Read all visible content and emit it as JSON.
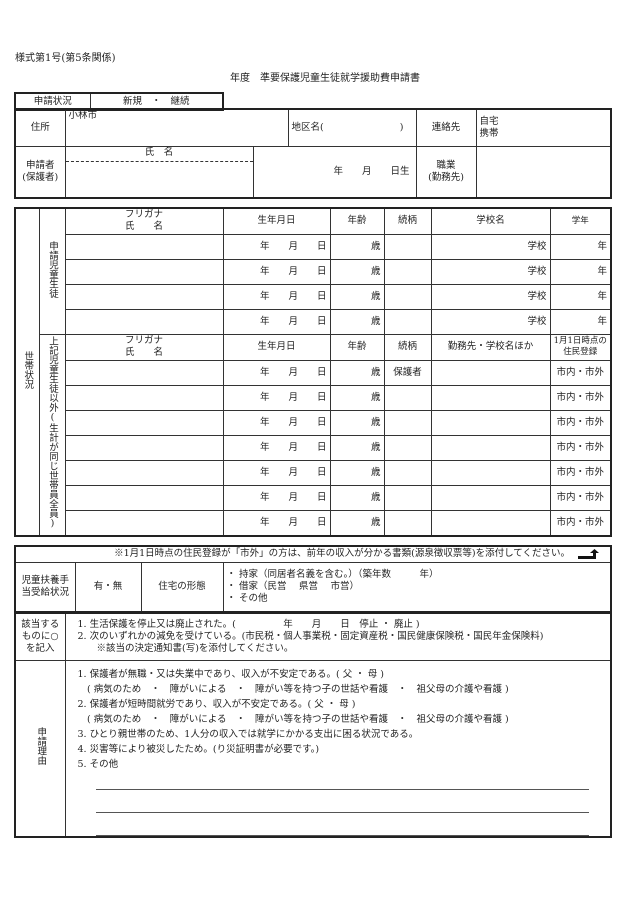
{
  "form_number": "様式第1号(第5条関係)",
  "title": "年度　準要保護児童生徒就学援助費申請書",
  "application_status": {
    "label": "申請状況",
    "options": "新規　・　継続"
  },
  "address": {
    "label": "住所",
    "value": "小林市",
    "district_label": "地区名(　　　　　　　　)",
    "contact_label": "連絡先",
    "home": "自宅",
    "mobile": "携帯"
  },
  "applicant": {
    "label": "申請者",
    "label2": "(保護者)",
    "name_label": "氏　名",
    "birth_suffix": "年　　月　　日生",
    "job_label": "職業",
    "job_label2": "(勤務先)"
  },
  "household": {
    "section_label": "世帯状況",
    "students_label": "申請児童生徒",
    "students_header": {
      "furigana": "フリガナ",
      "name": "氏　　名",
      "birth": "生年月日",
      "age": "年齢",
      "relation": "続柄",
      "school": "学校名",
      "grade": "学年"
    },
    "student_rows": [
      {
        "birth": "年　　月　　日",
        "age": "歳",
        "school": "学校",
        "grade": "年"
      },
      {
        "birth": "年　　月　　日",
        "age": "歳",
        "school": "学校",
        "grade": "年"
      },
      {
        "birth": "年　　月　　日",
        "age": "歳",
        "school": "学校",
        "grade": "年"
      },
      {
        "birth": "年　　月　　日",
        "age": "歳",
        "school": "学校",
        "grade": "年"
      }
    ],
    "others_label": "上記児童生徒以外(生計が同じ世帯員全員)",
    "others_header": {
      "furigana": "フリガナ",
      "name": "氏　　名",
      "birth": "生年月日",
      "age": "年齢",
      "relation": "続柄",
      "work": "勤務先・学校名ほか",
      "residence": "1月1日時点の住民登録"
    },
    "other_rows": [
      {
        "birth": "年　　月　　日",
        "age": "歳",
        "relation": "保護者",
        "residence": "市内・市外"
      },
      {
        "birth": "年　　月　　日",
        "age": "歳",
        "relation": "",
        "residence": "市内・市外"
      },
      {
        "birth": "年　　月　　日",
        "age": "歳",
        "relation": "",
        "residence": "市内・市外"
      },
      {
        "birth": "年　　月　　日",
        "age": "歳",
        "relation": "",
        "residence": "市内・市外"
      },
      {
        "birth": "年　　月　　日",
        "age": "歳",
        "relation": "",
        "residence": "市内・市外"
      },
      {
        "birth": "年　　月　　日",
        "age": "歳",
        "relation": "",
        "residence": "市内・市外"
      },
      {
        "birth": "年　　月　　日",
        "age": "歳",
        "relation": "",
        "residence": "市内・市外"
      }
    ]
  },
  "note": "※1月1日時点の住民登録が「市外」の方は、前年の収入が分かる書類(源泉徴収票等)を添付してください。",
  "allowance": {
    "label": "児童扶養手当受給状況",
    "value": "有・無",
    "housing_label": "住宅の形態",
    "housing_options": [
      "・ 持家（同居者名義を含む。）（築年数　　　年）",
      "・ 借家（民営　 県営　 市営）",
      "・ その他"
    ]
  },
  "applicable": {
    "label": "該当するものに○を記入",
    "items": [
      "1. 生活保護を停止又は廃止された。(　　　　　年　　月　　日　停止 ・ 廃止 )",
      "2. 次のいずれかの減免を受けている。(市民税・個人事業税・固定資産税・国民健康保険税・国民年金保険料)",
      "　　※該当の決定通知書(写)を添付してください。"
    ]
  },
  "reason": {
    "label": "申請理由",
    "items": [
      "1. 保護者が無職・又は失業中であり、収入が不安定である。( 父 ・ 母 )",
      "　( 病気のため　・　障がいによる　・　障がい等を持つ子の世話や看護　・　祖父母の介護や看護 )",
      "2. 保護者が短時間就労であり、収入が不安定である。( 父 ・ 母 )",
      "　( 病気のため　・　障がいによる　・　障がい等を持つ子の世話や看護　・　祖父母の介護や看護 )",
      "3. ひとり親世帯のため、1人分の収入では就学にかかる支出に困る状況である。",
      "4. 災害等により被災したため。(り災証明書が必要です。)",
      "5. その他"
    ]
  }
}
